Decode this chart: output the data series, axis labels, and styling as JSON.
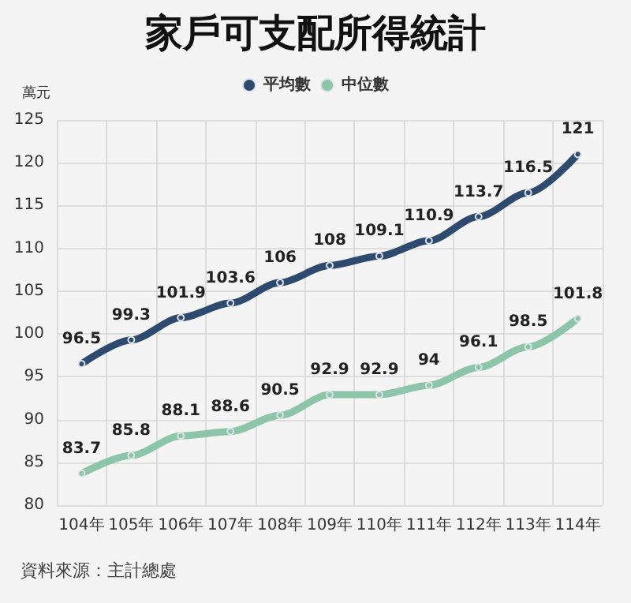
{
  "chart_data": {
    "type": "line",
    "title": "家戶可支配所得統計",
    "ylabel": "萬元",
    "categories": [
      "104年",
      "105年",
      "106年",
      "107年",
      "108年",
      "109年",
      "110年",
      "111年",
      "112年",
      "113年",
      "114年"
    ],
    "series": [
      {
        "name": "平均數",
        "color": "#2e4a6e",
        "values": [
          96.5,
          99.3,
          101.9,
          103.6,
          106,
          108,
          109.1,
          110.9,
          113.7,
          116.5,
          121
        ]
      },
      {
        "name": "中位數",
        "color": "#8cc5a8",
        "values": [
          83.7,
          85.8,
          88.1,
          88.6,
          90.5,
          92.9,
          92.9,
          94,
          96.1,
          98.5,
          101.8
        ]
      }
    ],
    "ylim": [
      80,
      125
    ],
    "yticks": [
      80,
      85,
      90,
      95,
      100,
      105,
      110,
      115,
      120,
      125
    ],
    "grid": true,
    "legend": "top",
    "marker": "circle",
    "line_style": "solid",
    "data_labels": true,
    "annotations": [
      "資料來源：主計總處"
    ]
  }
}
